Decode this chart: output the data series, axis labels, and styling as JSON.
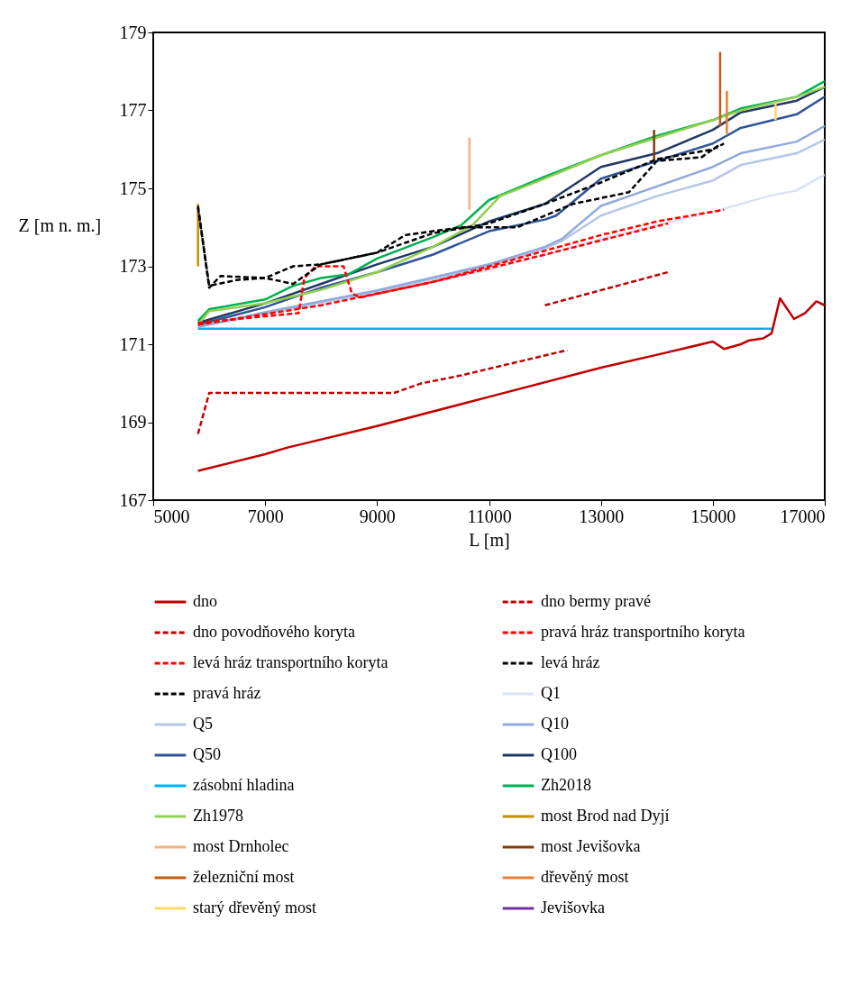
{
  "chart_data": {
    "type": "line",
    "xlabel": "L [m]",
    "ylabel": "Z [m n. m.]",
    "xlim": [
      5000,
      17000
    ],
    "xticks": [
      5000,
      7000,
      9000,
      11000,
      13000,
      15000,
      17000
    ],
    "ylim": [
      167,
      179
    ],
    "yticks": [
      167,
      169,
      171,
      173,
      175,
      177,
      179
    ],
    "grid": false,
    "legend": "bottom",
    "marker": "none",
    "series": [
      {
        "name": "dno",
        "color": "#c00000",
        "line_style": "solid",
        "x": [
          5800,
          7000,
          7400,
          9000,
          11000,
          13000,
          14215,
          15000,
          15200,
          15500,
          15650,
          15900,
          16050,
          16200,
          16450,
          16650,
          16850,
          17000
        ],
        "values": [
          167.75,
          168.18,
          168.35,
          168.9,
          169.65,
          170.4,
          170.8,
          171.07,
          170.88,
          171.0,
          171.1,
          171.15,
          171.28,
          172.18,
          171.65,
          171.8,
          172.1,
          172.0
        ]
      },
      {
        "name": "dno bermy pravé",
        "color": "#c00000",
        "line_style": "dashed",
        "x": [
          12000,
          14200
        ],
        "values": [
          172.0,
          172.85
        ]
      },
      {
        "name": "dno povodňového koryta",
        "color": "#c00000",
        "line_style": "dashed",
        "x": [
          5800,
          6000,
          9300,
          9800,
          10500,
          12400
        ],
        "values": [
          168.7,
          169.75,
          169.75,
          170.0,
          170.2,
          170.85
        ]
      },
      {
        "name": "pravá hráz transportního koryta",
        "color": "#ff0000",
        "line_style": "dashed",
        "x": [
          5800,
          7600,
          7700,
          7900,
          8400,
          8550,
          8700,
          10000,
          12000,
          13000,
          14000,
          15200
        ],
        "values": [
          171.55,
          171.8,
          172.7,
          173.0,
          173.0,
          172.3,
          172.2,
          172.6,
          173.4,
          173.8,
          174.15,
          174.45
        ]
      },
      {
        "name": "levá hráz transportního koryta",
        "color": "#ff0000",
        "line_style": "dashed",
        "x": [
          5800,
          8000,
          10000,
          12000,
          14200
        ],
        "values": [
          171.5,
          172.0,
          172.6,
          173.3,
          174.1
        ]
      },
      {
        "name": "levá hráz",
        "color": "#000000",
        "line_style": "dashed",
        "x": [
          5800,
          6000,
          6200,
          7000,
          7500,
          8000,
          9000,
          10000,
          11000,
          12000,
          13000,
          14000,
          15000,
          15200
        ],
        "values": [
          174.55,
          172.45,
          172.75,
          172.7,
          172.55,
          173.05,
          173.35,
          173.85,
          174.1,
          174.6,
          175.15,
          175.75,
          176.0,
          176.15
        ]
      },
      {
        "name": "pravá hráz",
        "color": "#000000",
        "line_style": "dashed",
        "x": [
          5800,
          6000,
          6500,
          7000,
          7500,
          8000,
          8500,
          9000,
          9500,
          10500,
          11500,
          12500,
          13500,
          14000,
          14800,
          15100
        ],
        "values": [
          174.5,
          172.5,
          172.65,
          172.7,
          173.0,
          173.05,
          173.2,
          173.35,
          173.8,
          174.0,
          174.0,
          174.6,
          174.9,
          175.7,
          175.8,
          176.1
        ]
      },
      {
        "name": "Q1",
        "color": "#dae3f3",
        "line_style": "solid",
        "x": [
          5800,
          7000,
          9000,
          11000,
          12000,
          13000,
          14000,
          15000,
          16000,
          16500,
          17000
        ],
        "values": [
          171.45,
          171.75,
          172.3,
          172.9,
          173.3,
          173.7,
          174.05,
          174.4,
          174.8,
          174.95,
          175.35
        ]
      },
      {
        "name": "Q5",
        "color": "#b4c7e7",
        "line_style": "solid",
        "x": [
          5800,
          7000,
          9000,
          11000,
          12000,
          12300,
          13000,
          14000,
          15000,
          15500,
          16500,
          17000
        ],
        "values": [
          171.45,
          171.8,
          172.35,
          173.0,
          173.45,
          173.65,
          174.3,
          174.8,
          175.2,
          175.6,
          175.9,
          176.25
        ]
      },
      {
        "name": "Q10",
        "color": "#8faadc",
        "line_style": "solid",
        "x": [
          5800,
          7000,
          9000,
          11000,
          12000,
          12300,
          13000,
          14000,
          15000,
          15500,
          16500,
          17000
        ],
        "values": [
          171.45,
          171.82,
          172.38,
          173.05,
          173.5,
          173.7,
          174.55,
          175.05,
          175.55,
          175.9,
          176.2,
          176.6
        ]
      },
      {
        "name": "Q50",
        "color": "#2f5597",
        "line_style": "solid",
        "x": [
          5800,
          7000,
          8000,
          9000,
          10000,
          11000,
          12000,
          12200,
          13000,
          14000,
          15000,
          15500,
          16500,
          17000
        ],
        "values": [
          171.5,
          171.95,
          172.45,
          172.85,
          173.3,
          173.9,
          174.2,
          174.3,
          175.25,
          175.7,
          176.15,
          176.55,
          176.9,
          177.35
        ]
      },
      {
        "name": "Q100",
        "color": "#203864",
        "line_style": "solid",
        "x": [
          5800,
          7000,
          8000,
          9000,
          10000,
          11000,
          12000,
          13000,
          14000,
          15000,
          15500,
          16500,
          17000
        ],
        "values": [
          171.55,
          172.05,
          172.55,
          173.05,
          173.5,
          174.15,
          174.6,
          175.55,
          175.9,
          176.5,
          176.95,
          177.25,
          177.6
        ]
      },
      {
        "name": "zásobní hladina",
        "color": "#00b0f0",
        "line_style": "solid",
        "x": [
          5800,
          16050
        ],
        "values": [
          171.4,
          171.4
        ]
      },
      {
        "name": "Zh2018",
        "color": "#00b050",
        "line_style": "solid",
        "x": [
          5800,
          6000,
          7000,
          7500,
          8000,
          8500,
          9000,
          10000,
          10500,
          11000,
          12000,
          13000,
          14000,
          15000,
          15500,
          16500,
          17000
        ],
        "values": [
          171.6,
          171.9,
          172.15,
          172.5,
          172.7,
          172.8,
          173.2,
          173.75,
          174.05,
          174.7,
          175.3,
          175.85,
          176.35,
          176.75,
          177.05,
          177.35,
          177.75
        ]
      },
      {
        "name": "Zh1978",
        "color": "#92d050",
        "line_style": "solid",
        "x": [
          5800,
          6000,
          7000,
          8000,
          9000,
          10000,
          10700,
          11200,
          12000,
          13000,
          14000,
          15000,
          15500,
          16500,
          17000
        ],
        "values": [
          171.5,
          171.85,
          172.05,
          172.4,
          172.85,
          173.5,
          174.05,
          174.8,
          175.25,
          175.85,
          176.3,
          176.75,
          177.0,
          177.35,
          177.6
        ]
      },
      {
        "name": "most Brod nad Dyjí",
        "color": "#bf9000",
        "line_style": "solid",
        "x": [
          5800,
          5800
        ],
        "values": [
          173.0,
          174.6
        ]
      },
      {
        "name": "most Drnholec",
        "color": "#f4b183",
        "line_style": "solid",
        "x": [
          10650,
          10650
        ],
        "values": [
          174.45,
          176.3
        ]
      },
      {
        "name": "most Jevišovka",
        "color": "#843c0c",
        "line_style": "solid",
        "x": [
          13950,
          13950
        ],
        "values": [
          175.7,
          176.5
        ]
      },
      {
        "name": "železniční most",
        "color": "#c55a11",
        "line_style": "solid",
        "x": [
          15130,
          15130
        ],
        "values": [
          176.6,
          178.5
        ]
      },
      {
        "name": "dřevěný most",
        "color": "#ed7d31",
        "line_style": "solid",
        "x": [
          15250,
          15250
        ],
        "values": [
          176.4,
          177.5
        ]
      },
      {
        "name": "starý dřevěný most",
        "color": "#ffd966",
        "line_style": "solid",
        "x": [
          16120,
          16120
        ],
        "values": [
          176.75,
          177.2
        ]
      },
      {
        "name": "Jevišovka",
        "color": "#7030a0",
        "line_style": "solid",
        "x": [
          14210,
          14260
        ],
        "values": [
          170.8,
          170.83
        ]
      }
    ]
  }
}
